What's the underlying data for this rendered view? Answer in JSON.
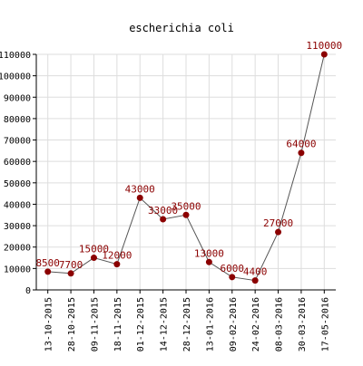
{
  "chart_data": {
    "type": "line",
    "title": "escherichia coli",
    "xlabel": "",
    "ylabel": "",
    "ylim": [
      0,
      110000
    ],
    "y_ticks": [
      0,
      10000,
      20000,
      30000,
      40000,
      50000,
      60000,
      70000,
      80000,
      90000,
      100000,
      110000
    ],
    "grid": true,
    "categories": [
      "13-10-2015",
      "28-10-2015",
      "09-11-2015",
      "18-11-2015",
      "01-12-2015",
      "14-12-2015",
      "28-12-2015",
      "13-01-2016",
      "09-02-2016",
      "24-02-2016",
      "08-03-2016",
      "30-03-2016",
      "17-05-2016"
    ],
    "series": [
      {
        "values": [
          8500,
          7700,
          15000,
          12000,
          43000,
          33000,
          35000,
          13000,
          6000,
          4400,
          27000,
          64000,
          110000
        ],
        "line_color": "#555555",
        "marker_color": "#8b0000",
        "label_color": "#8b0000"
      }
    ],
    "colors": {
      "grid": "#dddddd",
      "axis": "#000000",
      "text": "#000000"
    }
  }
}
